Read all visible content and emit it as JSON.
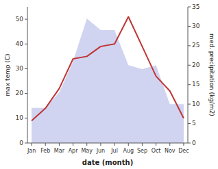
{
  "chart_data": {
    "type": "line",
    "categories": [
      "Jan",
      "Feb",
      "Mar",
      "Apr",
      "May",
      "Jun",
      "Jul",
      "Aug",
      "Sep",
      "Oct",
      "Nov",
      "Dec"
    ],
    "series": [
      {
        "type": "area",
        "axis": "y2",
        "color": "#b0b8e8",
        "values": [
          9,
          9,
          13,
          21,
          32,
          29,
          29,
          20,
          19,
          20,
          10,
          10
        ]
      },
      {
        "type": "line",
        "color": "#c03535",
        "values": [
          9,
          14,
          22,
          34,
          35,
          39,
          40,
          51,
          39,
          27,
          21,
          10
        ]
      }
    ],
    "xlabel": "date (month)",
    "ylabel": "max temp (C)",
    "y2label": "med. precipitation (kg/m2)",
    "ylim": [
      0,
      55
    ],
    "yticks": [
      0,
      10,
      20,
      30,
      40,
      50
    ],
    "y2lim": [
      0,
      35
    ],
    "y2ticks": [
      0,
      5,
      10,
      15,
      20,
      25,
      30,
      35
    ],
    "grid": false
  }
}
